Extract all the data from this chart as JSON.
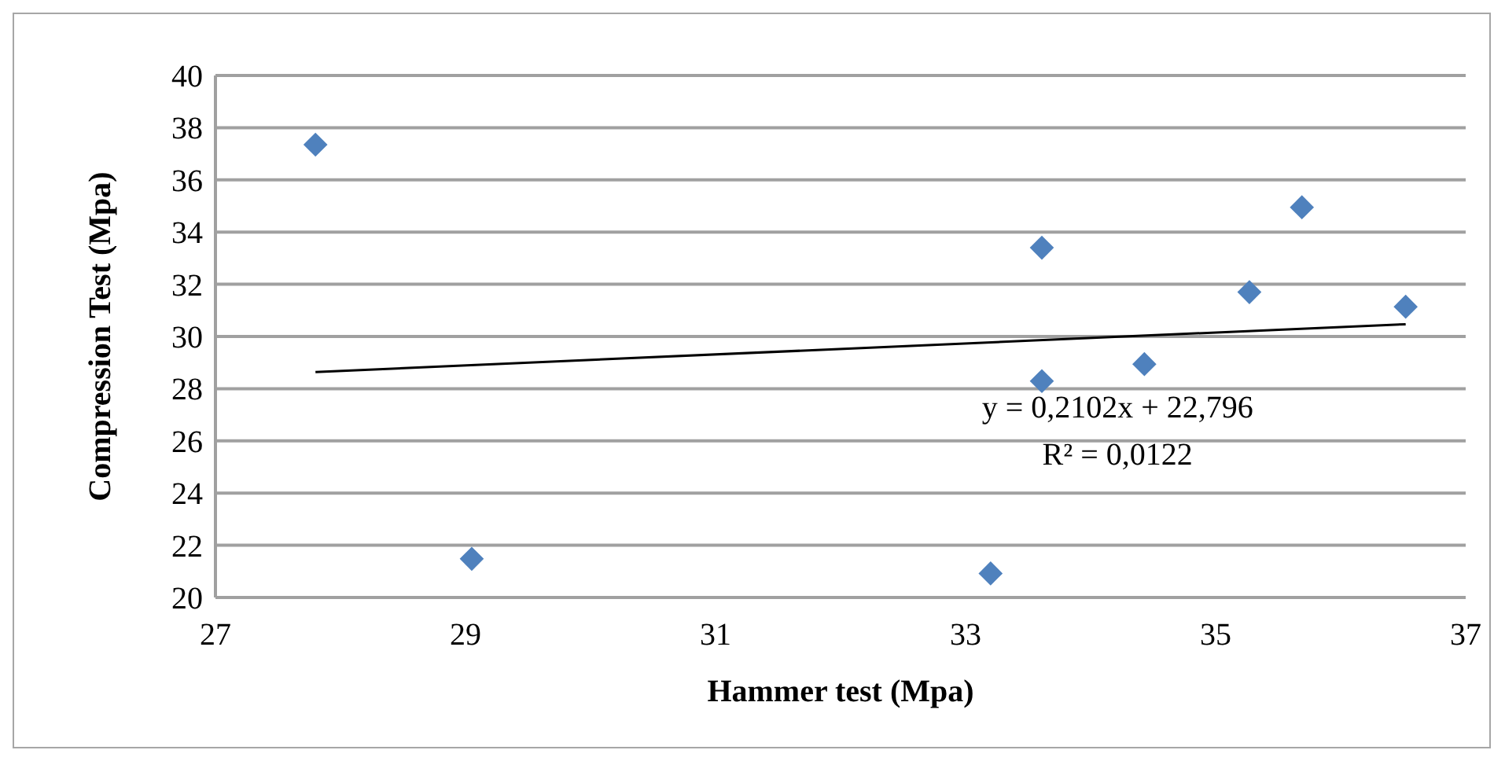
{
  "chart_data": {
    "type": "scatter",
    "xlabel": "Hammer test (Mpa)",
    "ylabel": "Compression Test (Mpa)",
    "x": [
      27.8,
      29.05,
      33.2,
      33.61,
      33.61,
      34.43,
      35.27,
      35.69,
      36.52
    ],
    "series": [
      {
        "color": "#4f81bd",
        "marker": "diamond",
        "values": [
          37.35,
          21.48,
          20.92,
          28.29,
          33.4,
          28.94,
          31.7,
          34.95,
          31.14
        ]
      },
      {
        "type": "line",
        "color": "#000000",
        "x": [
          27.8,
          36.52
        ],
        "values": [
          28.64,
          30.47
        ],
        "marker": "none",
        "line_style": "solid"
      }
    ],
    "annotations": [
      "y = 0,2102x + 22,796",
      "R² = 0,0122"
    ],
    "xlim": [
      27,
      37
    ],
    "xticks": [
      27,
      29,
      31,
      33,
      35,
      37
    ],
    "ylim": [
      20,
      40
    ],
    "yticks": [
      20,
      22,
      24,
      26,
      28,
      30,
      32,
      34,
      36,
      38,
      40
    ],
    "grid": "y"
  }
}
